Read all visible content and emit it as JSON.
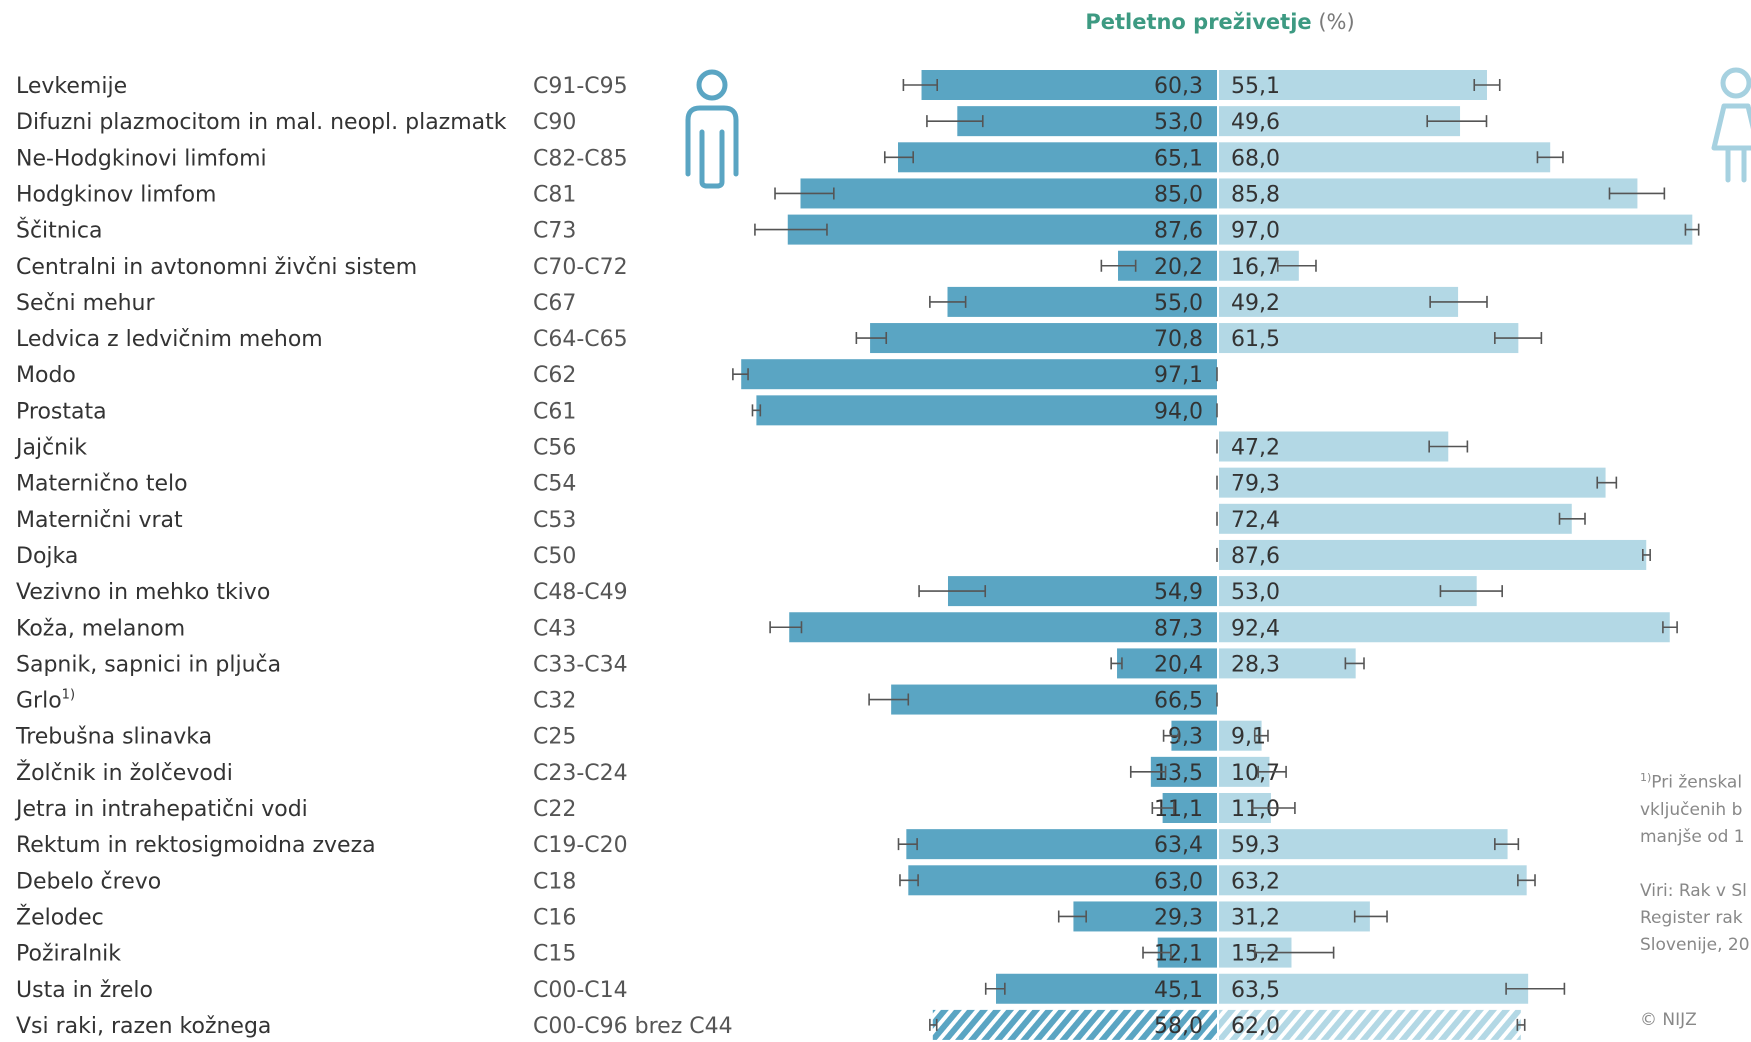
{
  "chart_data": {
    "type": "bar",
    "title": "Petletno preživetje",
    "title_unit": "(%)",
    "orientation": "horizontal-butterfly",
    "xlim": [
      0,
      100
    ],
    "colors": {
      "men": "#5aa5c3",
      "women": "#b3d8e5",
      "icon_men": "#5aa5c3",
      "icon_women": "#a6d1e0"
    },
    "series": [
      {
        "name": "men",
        "icon": "man-icon"
      },
      {
        "name": "women",
        "icon": "woman-icon"
      }
    ],
    "rows": [
      {
        "label": "Levkemije",
        "code": "C91-C95",
        "men": 60.3,
        "men_lbl": "60,3",
        "men_ci": [
          57.1,
          64.0
        ],
        "women": 55.1,
        "women_lbl": "55,1",
        "women_ci": [
          52.5,
          57.7
        ]
      },
      {
        "label": "Difuzni plazmocitom in mal. neopl. plazmatk",
        "code": "C90",
        "men": 53.0,
        "men_lbl": "53,0",
        "men_ci": [
          47.8,
          59.2
        ],
        "women": 49.6,
        "women_lbl": "49,6",
        "women_ci": [
          42.9,
          55.0
        ]
      },
      {
        "label": "Ne-Hodgkinovi limfomi",
        "code": "C82-C85",
        "men": 65.1,
        "men_lbl": "65,1",
        "men_ci": [
          62.0,
          67.8
        ],
        "women": 68.0,
        "women_lbl": "68,0",
        "women_ci": [
          65.4,
          70.6
        ]
      },
      {
        "label": "Hodgkinov limfom",
        "code": "C81",
        "men": 85.0,
        "men_lbl": "85,0",
        "men_ci": [
          78.2,
          90.2
        ],
        "women": 85.8,
        "women_lbl": "85,8",
        "women_ci": [
          80.1,
          91.3
        ]
      },
      {
        "label": "Ščitnica",
        "code": "C73",
        "men": 87.6,
        "men_lbl": "87,6",
        "men_ci": [
          79.6,
          94.3
        ],
        "women": 97.0,
        "women_lbl": "97,0",
        "women_ci": [
          95.6,
          98.3
        ]
      },
      {
        "label": "Centralni in avtonomni živčni sistem",
        "code": "C70-C72",
        "men": 20.2,
        "men_lbl": "20,2",
        "men_ci": [
          16.6,
          23.6
        ],
        "women": 16.7,
        "women_lbl": "16,7",
        "women_ci": [
          12.4,
          20.2
        ]
      },
      {
        "label": "Sečni mehur",
        "code": "C67",
        "men": 55.0,
        "men_lbl": "55,0",
        "men_ci": [
          51.3,
          58.6
        ],
        "women": 49.2,
        "women_lbl": "49,2",
        "women_ci": [
          43.5,
          55.1
        ]
      },
      {
        "label": "Ledvica z ledvičnim mehom",
        "code": "C64-C65",
        "men": 70.8,
        "men_lbl": "70,8",
        "men_ci": [
          67.5,
          73.6
        ],
        "women": 61.5,
        "women_lbl": "61,5",
        "women_ci": [
          56.7,
          66.2
        ]
      },
      {
        "label": "Modo",
        "code": "C62",
        "men": 97.1,
        "men_lbl": "97,1",
        "men_ci": [
          95.7,
          98.8
        ],
        "women": null,
        "women_lbl": "",
        "women_ci": null
      },
      {
        "label": "Prostata",
        "code": "C61",
        "men": 94.0,
        "men_lbl": "94,0",
        "men_ci": [
          93.2,
          94.8
        ],
        "women": null,
        "women_lbl": "",
        "women_ci": null
      },
      {
        "label": "Jajčnik",
        "code": "C56",
        "men": null,
        "men_lbl": "",
        "men_ci": null,
        "women": 47.2,
        "women_lbl": "47,2",
        "women_ci": [
          43.3,
          51.1
        ]
      },
      {
        "label": "Maternično telo",
        "code": "C54",
        "men": null,
        "men_lbl": "",
        "men_ci": null,
        "women": 79.3,
        "women_lbl": "79,3",
        "women_ci": [
          77.6,
          81.5
        ]
      },
      {
        "label": "Maternični vrat",
        "code": "C53",
        "men": null,
        "men_lbl": "",
        "men_ci": null,
        "women": 72.4,
        "women_lbl": "72,4",
        "women_ci": [
          69.9,
          75.1
        ]
      },
      {
        "label": "Dojka",
        "code": "C50",
        "men": null,
        "men_lbl": "",
        "men_ci": null,
        "women": 87.6,
        "women_lbl": "87,6",
        "women_ci": [
          86.9,
          88.4
        ]
      },
      {
        "label": "Vezivno in mehko tkivo",
        "code": "C48-C49",
        "men": 54.9,
        "men_lbl": "54,9",
        "men_ci": [
          47.3,
          60.8
        ],
        "women": 53.0,
        "women_lbl": "53,0",
        "women_ci": [
          45.6,
          58.2
        ]
      },
      {
        "label": "Koža, melanom",
        "code": "C43",
        "men": 87.3,
        "men_lbl": "87,3",
        "men_ci": [
          84.8,
          91.2
        ],
        "women": 92.4,
        "women_lbl": "92,4",
        "women_ci": [
          91.0,
          93.9
        ]
      },
      {
        "label": "Sapnik, sapnici in pljuča",
        "code": "C33-C34",
        "men": 20.4,
        "men_lbl": "20,4",
        "men_ci": [
          19.4,
          21.6
        ],
        "women": 28.3,
        "women_lbl": "28,3",
        "women_ci": [
          26.2,
          30.0
        ]
      },
      {
        "label": "Grlo",
        "label_sup": "1)",
        "code": "C32",
        "men": 66.5,
        "men_lbl": "66,5",
        "men_ci": [
          63.0,
          71.0
        ],
        "women": null,
        "women_lbl": "",
        "women_ci": null
      },
      {
        "label": "Trebušna slinavka",
        "code": "C25",
        "men": 9.3,
        "men_lbl": "9,3",
        "men_ci": [
          7.8,
          10.9
        ],
        "women": 9.1,
        "women_lbl": "9,1",
        "women_ci": [
          7.7,
          10.4
        ]
      },
      {
        "label": "Žolčnik in žolčevodi",
        "code": "C23-C24",
        "men": 13.5,
        "men_lbl": "13,5",
        "men_ci": [
          10.5,
          17.6
        ],
        "women": 10.7,
        "women_lbl": "10,7",
        "women_ci": [
          8.4,
          14.1
        ]
      },
      {
        "label": "Jetra in intrahepatični vodi",
        "code": "C22",
        "men": 11.1,
        "men_lbl": "11,1",
        "men_ci": [
          8.8,
          13.2
        ],
        "women": 11.0,
        "women_lbl": "11,0",
        "women_ci": [
          7.1,
          15.9
        ]
      },
      {
        "label": "Rektum in rektosigmoidna zveza",
        "code": "C19-C20",
        "men": 63.4,
        "men_lbl": "63,4",
        "men_ci": [
          61.2,
          65.0
        ],
        "women": 59.3,
        "women_lbl": "59,3",
        "women_ci": [
          56.7,
          61.5
        ]
      },
      {
        "label": "Debelo črevo",
        "code": "C18",
        "men": 63.0,
        "men_lbl": "63,0",
        "men_ci": [
          61.0,
          64.7
        ],
        "women": 63.2,
        "women_lbl": "63,2",
        "women_ci": [
          61.4,
          64.9
        ]
      },
      {
        "label": "Želodec",
        "code": "C16",
        "men": 29.3,
        "men_lbl": "29,3",
        "men_ci": [
          26.7,
          32.3
        ],
        "women": 31.2,
        "women_lbl": "31,2",
        "women_ci": [
          28.1,
          34.7
        ]
      },
      {
        "label": "Požiralnik",
        "code": "C15",
        "men": 12.1,
        "men_lbl": "12,1",
        "men_ci": [
          9.4,
          15.1
        ],
        "women": 15.2,
        "women_lbl": "15,2",
        "women_ci": [
          7.7,
          23.8
        ]
      },
      {
        "label": "Usta in žrelo",
        "code": "C00-C14",
        "men": 45.1,
        "men_lbl": "45,1",
        "men_ci": [
          43.3,
          47.2
        ],
        "women": 63.5,
        "women_lbl": "63,5",
        "women_ci": [
          59.0,
          70.9
        ]
      },
      {
        "label": "Vsi raki, razen kožnega",
        "code": "C00-C96 brez C44",
        "men": 58.0,
        "men_lbl": "58,0",
        "men_ci": [
          57.2,
          58.6
        ],
        "women": 62.0,
        "women_lbl": "62,0",
        "women_ci": [
          61.3,
          62.8
        ],
        "pattern": "hatched"
      }
    ]
  },
  "footnote": {
    "sup": "1)",
    "text": "Pri ženskal\nvključenih b\nmanjše od 1",
    "source": "Viri: Rak v Sl\nRegister rak\nSlovenije, 20",
    "copyright": "© NIJZ"
  }
}
